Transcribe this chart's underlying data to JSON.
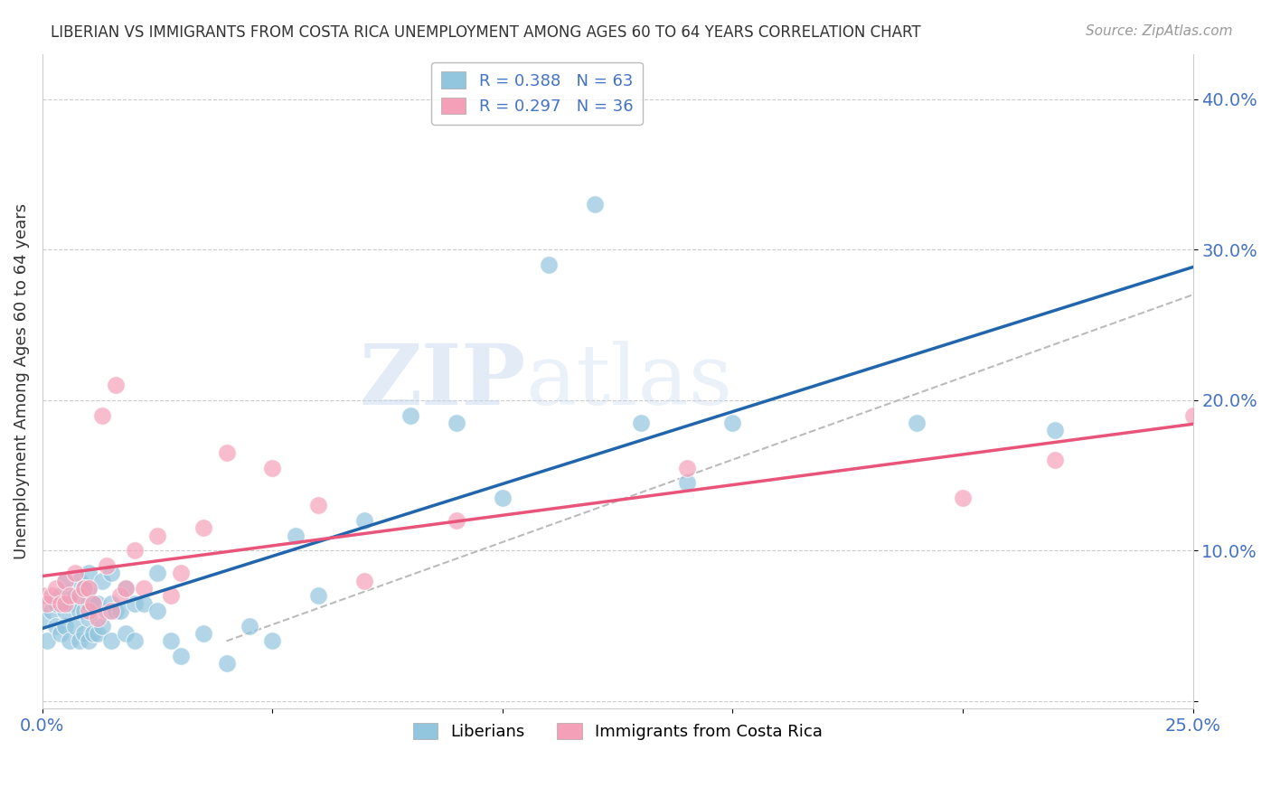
{
  "title": "LIBERIAN VS IMMIGRANTS FROM COSTA RICA UNEMPLOYMENT AMONG AGES 60 TO 64 YEARS CORRELATION CHART",
  "source": "Source: ZipAtlas.com",
  "ylabel": "Unemployment Among Ages 60 to 64 years",
  "xlim": [
    0.0,
    0.25
  ],
  "ylim": [
    -0.005,
    0.43
  ],
  "xticks": [
    0.0,
    0.05,
    0.1,
    0.15,
    0.2,
    0.25
  ],
  "xticklabels": [
    "0.0%",
    "",
    "",
    "",
    "",
    "25.0%"
  ],
  "yticks": [
    0.0,
    0.1,
    0.2,
    0.3,
    0.4
  ],
  "yticklabels": [
    "",
    "10.0%",
    "20.0%",
    "30.0%",
    "40.0%"
  ],
  "liberian_R": 0.388,
  "liberian_N": 63,
  "costarica_R": 0.297,
  "costarica_N": 36,
  "blue_color": "#92c5de",
  "pink_color": "#f4a0b8",
  "blue_line_color": "#2166ac",
  "pink_line_color": "#e8547a",
  "gray_dash_color": "#bbbbbb",
  "watermark_zip": "ZIP",
  "watermark_atlas": "atlas",
  "liberian_x": [
    0.0,
    0.001,
    0.002,
    0.003,
    0.003,
    0.004,
    0.004,
    0.005,
    0.005,
    0.005,
    0.006,
    0.006,
    0.007,
    0.007,
    0.008,
    0.008,
    0.008,
    0.009,
    0.009,
    0.009,
    0.01,
    0.01,
    0.01,
    0.01,
    0.01,
    0.011,
    0.011,
    0.012,
    0.012,
    0.013,
    0.013,
    0.014,
    0.015,
    0.015,
    0.015,
    0.016,
    0.017,
    0.018,
    0.018,
    0.02,
    0.02,
    0.022,
    0.025,
    0.025,
    0.028,
    0.03,
    0.035,
    0.04,
    0.045,
    0.05,
    0.055,
    0.06,
    0.07,
    0.08,
    0.09,
    0.1,
    0.11,
    0.12,
    0.13,
    0.14,
    0.15,
    0.19,
    0.22
  ],
  "liberian_y": [
    0.055,
    0.04,
    0.06,
    0.05,
    0.065,
    0.045,
    0.07,
    0.05,
    0.06,
    0.08,
    0.04,
    0.065,
    0.05,
    0.07,
    0.04,
    0.06,
    0.08,
    0.045,
    0.06,
    0.075,
    0.04,
    0.055,
    0.065,
    0.075,
    0.085,
    0.045,
    0.065,
    0.045,
    0.065,
    0.05,
    0.08,
    0.06,
    0.04,
    0.065,
    0.085,
    0.06,
    0.06,
    0.045,
    0.075,
    0.04,
    0.065,
    0.065,
    0.06,
    0.085,
    0.04,
    0.03,
    0.045,
    0.025,
    0.05,
    0.04,
    0.11,
    0.07,
    0.12,
    0.19,
    0.185,
    0.135,
    0.29,
    0.33,
    0.185,
    0.145,
    0.185,
    0.185,
    0.18
  ],
  "costarica_x": [
    0.0,
    0.001,
    0.002,
    0.003,
    0.004,
    0.005,
    0.005,
    0.006,
    0.007,
    0.008,
    0.009,
    0.01,
    0.01,
    0.011,
    0.012,
    0.013,
    0.014,
    0.015,
    0.016,
    0.017,
    0.018,
    0.02,
    0.022,
    0.025,
    0.028,
    0.03,
    0.035,
    0.04,
    0.05,
    0.06,
    0.07,
    0.09,
    0.14,
    0.2,
    0.22,
    0.25
  ],
  "costarica_y": [
    0.07,
    0.065,
    0.07,
    0.075,
    0.065,
    0.065,
    0.08,
    0.07,
    0.085,
    0.07,
    0.075,
    0.06,
    0.075,
    0.065,
    0.055,
    0.19,
    0.09,
    0.06,
    0.21,
    0.07,
    0.075,
    0.1,
    0.075,
    0.11,
    0.07,
    0.085,
    0.115,
    0.165,
    0.155,
    0.13,
    0.08,
    0.12,
    0.155,
    0.135,
    0.16,
    0.19
  ]
}
